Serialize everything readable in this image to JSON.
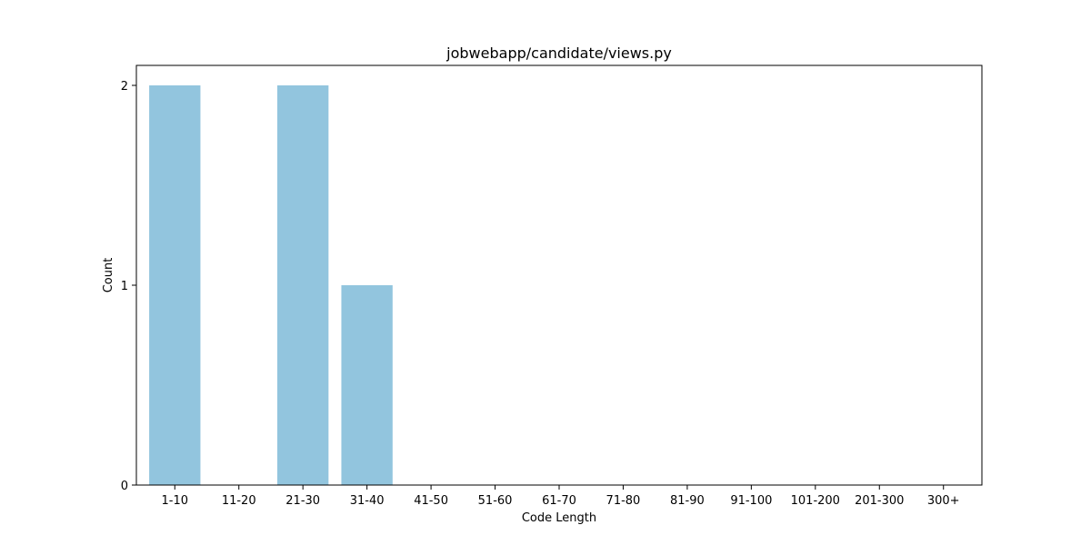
{
  "chart_data": {
    "type": "bar",
    "title": "jobwebapp/candidate/views.py",
    "xlabel": "Code Length",
    "ylabel": "Count",
    "categories": [
      "1-10",
      "11-20",
      "21-30",
      "31-40",
      "41-50",
      "51-60",
      "61-70",
      "71-80",
      "81-90",
      "91-100",
      "101-200",
      "201-300",
      "300+"
    ],
    "values": [
      2,
      0,
      2,
      1,
      0,
      0,
      0,
      0,
      0,
      0,
      0,
      0,
      0
    ],
    "ylim": [
      0,
      2.1
    ],
    "yticks": [
      "0",
      "1",
      "2"
    ],
    "bar_color": "#92c5de",
    "grid": false,
    "legend": "none"
  }
}
